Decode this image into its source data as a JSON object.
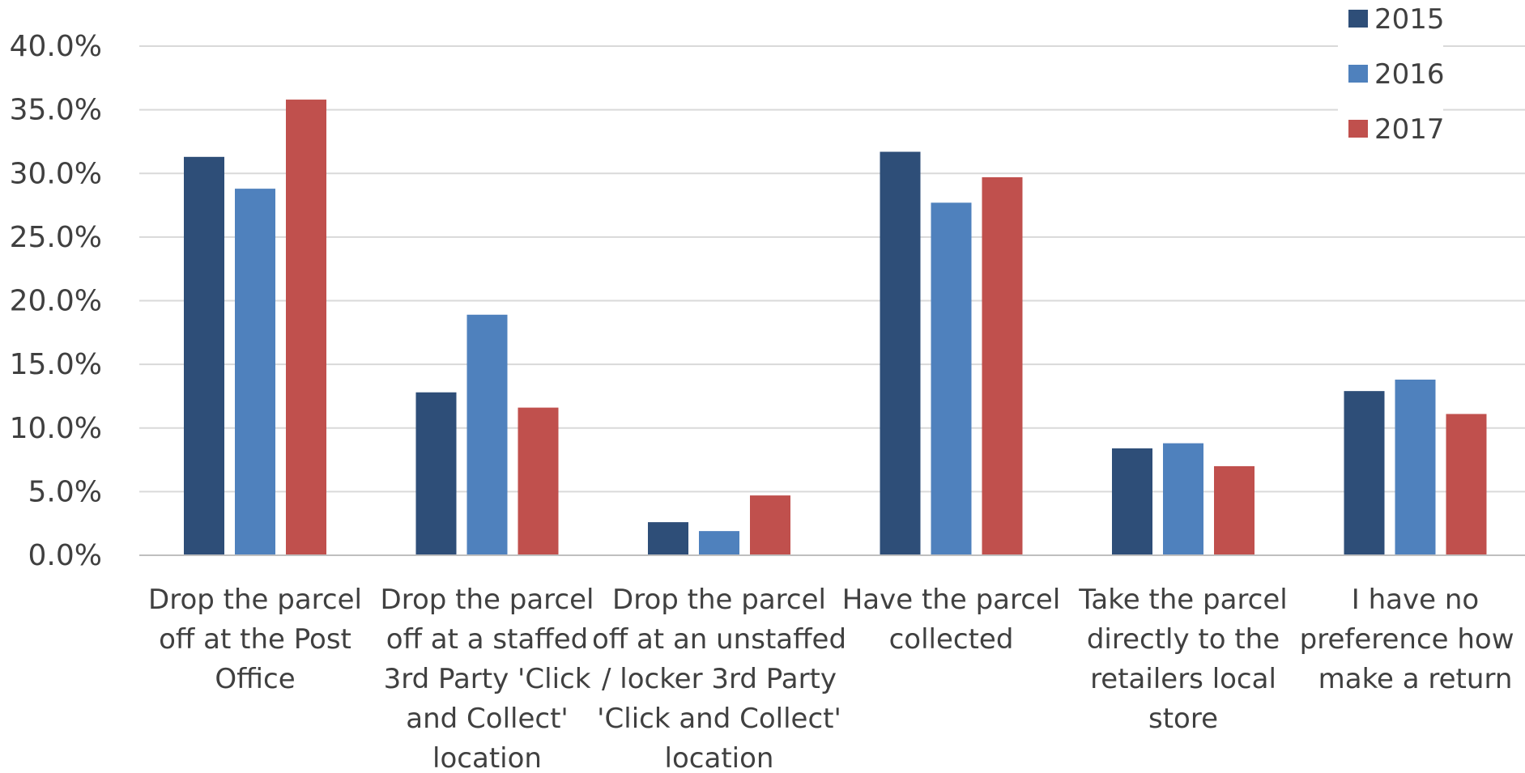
{
  "chart_data": {
    "type": "bar",
    "categories": [
      [
        "Drop the parcel",
        "off at the Post",
        "Office"
      ],
      [
        "Drop the parcel",
        "off at a staffed",
        "3rd Party 'Click",
        "and Collect'",
        "location"
      ],
      [
        "Drop the parcel",
        "off at an unstaffed",
        "/ locker 3rd Party",
        "'Click and Collect'",
        "location"
      ],
      [
        "Have the parcel",
        "collected"
      ],
      [
        "Take the parcel",
        "directly to the",
        "retailers local",
        "store"
      ],
      [
        "I have no",
        "preference how I",
        "make a return"
      ]
    ],
    "series": [
      {
        "name": "2015",
        "color": "#2e4e78",
        "values": [
          31.3,
          12.8,
          2.6,
          31.7,
          8.4,
          12.9
        ]
      },
      {
        "name": "2016",
        "color": "#4f81bd",
        "values": [
          28.8,
          18.9,
          1.9,
          27.7,
          8.8,
          13.8
        ]
      },
      {
        "name": "2017",
        "color": "#c0504d",
        "values": [
          35.8,
          11.6,
          4.7,
          29.7,
          7.0,
          11.1
        ]
      }
    ],
    "yticks": [
      "0.0%",
      "5.0%",
      "10.0%",
      "15.0%",
      "20.0%",
      "25.0%",
      "30.0%",
      "35.0%",
      "40.0%"
    ],
    "ylim": [
      0,
      40
    ],
    "grid": true,
    "legend_position": "top-right",
    "title": "",
    "xlabel": "",
    "ylabel": ""
  }
}
